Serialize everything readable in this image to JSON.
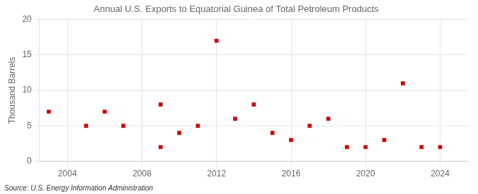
{
  "chart_data": {
    "type": "scatter",
    "title": "Annual U.S. Exports to Equatorial Guinea of Total Petroleum Products",
    "ylabel": "Thousand Barrels",
    "source": "Source: U.S. Energy Information Administration",
    "x": [
      2003,
      2005,
      2006,
      2007,
      2009,
      2009,
      2010,
      2011,
      2012,
      2013,
      2014,
      2015,
      2016,
      2017,
      2018,
      2019,
      2020,
      2021,
      2022,
      2023,
      2024
    ],
    "values": [
      7,
      5,
      7,
      5,
      2,
      8,
      4,
      5,
      17,
      6,
      8,
      4,
      3,
      5,
      6,
      2,
      2,
      3,
      11,
      2,
      2
    ],
    "xlim": [
      2002.5,
      2025.5
    ],
    "ylim": [
      0,
      20
    ],
    "xticks": [
      2004,
      2008,
      2012,
      2016,
      2020,
      2024
    ],
    "yticks": [
      0,
      5,
      10,
      15,
      20
    ],
    "color": "#cc0000",
    "marker": "square",
    "grid": true
  }
}
